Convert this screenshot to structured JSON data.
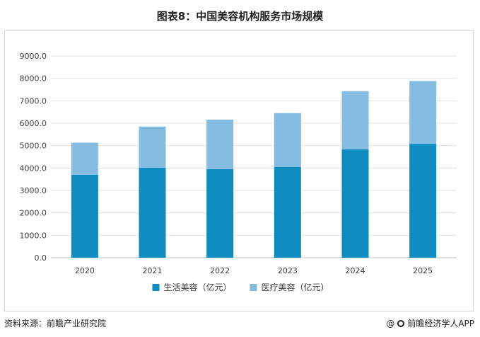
{
  "title": "图表8：中国美容机构服务市场规模",
  "chart_data": {
    "type": "bar",
    "stacked": true,
    "categories": [
      "2020",
      "2021",
      "2022",
      "2023",
      "2024",
      "2025"
    ],
    "series": [
      {
        "name": "生活美容（亿元）",
        "color": "#0e8bbf",
        "values": [
          3700,
          4010,
          3950,
          4050,
          4830,
          5080
        ]
      },
      {
        "name": "医疗美容（亿元）",
        "color": "#85bde2",
        "values": [
          1430,
          1840,
          2210,
          2400,
          2600,
          2800
        ]
      }
    ],
    "ylim": [
      0,
      9000
    ],
    "yticks": [
      "0.0",
      "1000.0",
      "2000.0",
      "3000.0",
      "4000.0",
      "5000.0",
      "6000.0",
      "7000.0",
      "8000.0",
      "9000.0"
    ],
    "grid": true,
    "legend": "bottom"
  },
  "source": {
    "left": "资料来源：前瞻产业研究院",
    "right": "前瞻经济学人APP",
    "right_prefix": "@"
  }
}
